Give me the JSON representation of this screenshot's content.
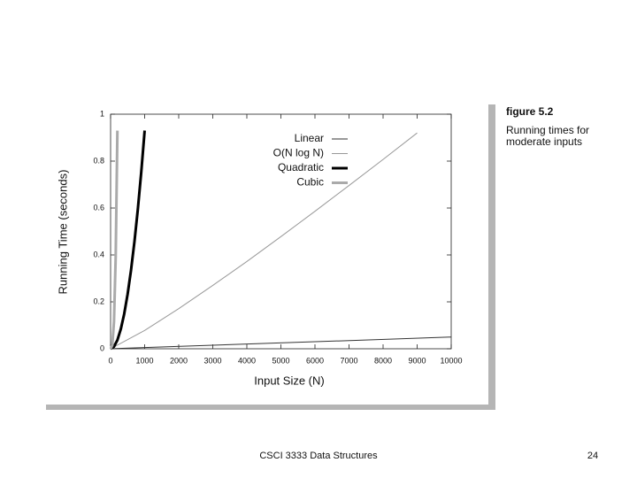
{
  "chart_data": {
    "type": "line",
    "figure_label": "figure 5.2",
    "caption": [
      "Running times for",
      "moderate inputs"
    ],
    "xlabel": "Input Size (N)",
    "ylabel": "Running Time (seconds)",
    "xlim": [
      0,
      10000
    ],
    "xticks": [
      0,
      1000,
      2000,
      3000,
      4000,
      5000,
      6000,
      7000,
      8000,
      9000,
      10000
    ],
    "ylim": [
      0,
      1
    ],
    "yticks": [
      0,
      0.2,
      0.4,
      0.6,
      0.8,
      1
    ],
    "series": [
      {
        "name": "Linear",
        "color": "#333333",
        "width": 1,
        "x": [
          0,
          10000
        ],
        "values": [
          0,
          0.05
        ]
      },
      {
        "name": "O(N log N)",
        "color": "#999999",
        "width": 1,
        "x": [
          0,
          1000,
          2000,
          3000,
          4000,
          5000,
          6000,
          7000,
          8000,
          9000
        ],
        "values": [
          0,
          0.078,
          0.171,
          0.27,
          0.372,
          0.478,
          0.586,
          0.696,
          0.807,
          0.92
        ]
      },
      {
        "name": "Quadratic",
        "color": "#000000",
        "width": 3,
        "x": [
          0,
          100,
          200,
          300,
          400,
          500,
          600,
          700,
          800,
          900,
          1000
        ],
        "values": [
          0,
          0.009,
          0.037,
          0.084,
          0.149,
          0.233,
          0.335,
          0.456,
          0.595,
          0.753,
          0.93
        ]
      },
      {
        "name": "Cubic",
        "color": "#aaaaaa",
        "width": 3,
        "x": [
          0,
          50,
          100,
          150,
          200
        ],
        "values": [
          0,
          0.015,
          0.116,
          0.392,
          0.93
        ]
      }
    ]
  },
  "footer": {
    "course": "CSCI 3333 Data Structures",
    "page": "24"
  }
}
